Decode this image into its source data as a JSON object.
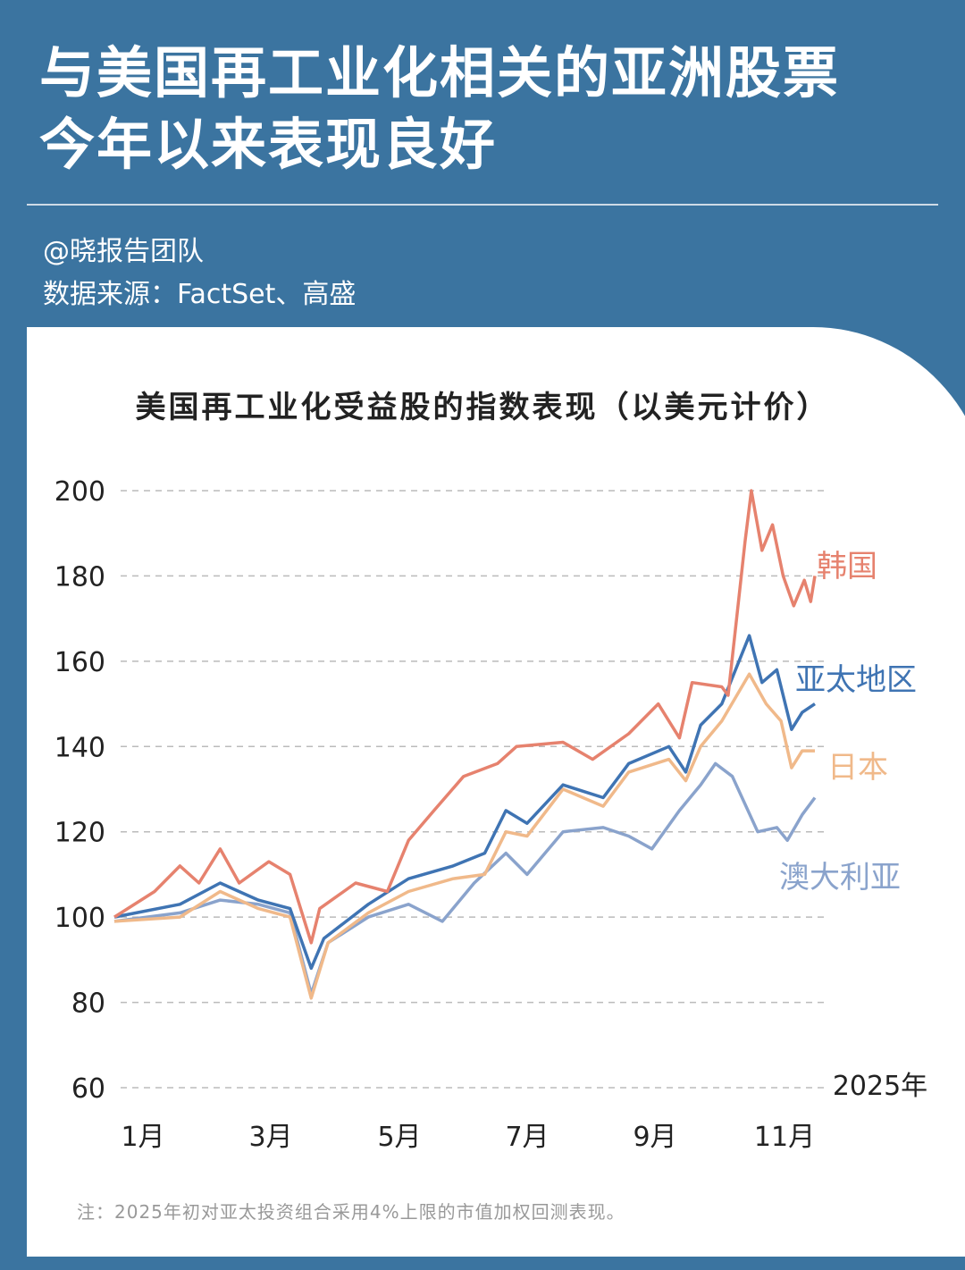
{
  "header": {
    "title_line1": "与美国再工业化相关的亚洲股票",
    "title_line2": "今年以来表现良好",
    "author": "@晓报告团队",
    "source": "数据来源：FactSet、高盛"
  },
  "note": "注：2025年初对亚太投资组合采用4%上限的市值加权回测表现。",
  "colors": {
    "background": "#3b74a0",
    "korea": "#e6826e",
    "asia_pacific": "#3f74b3",
    "japan": "#f0b98a",
    "australia": "#8aa3cc"
  },
  "chart_data": {
    "type": "line",
    "title": "美国再工业化受益股的指数表现（以美元计价）",
    "xlabel": "2025年",
    "ylim": [
      60,
      200
    ],
    "yticks": [
      "200",
      "180",
      "160",
      "140",
      "120",
      "100",
      "80",
      "60"
    ],
    "xticks": [
      "1月",
      "3月",
      "5月",
      "7月",
      "9月",
      "11月"
    ],
    "grid": "horizontal dashed",
    "series": [
      {
        "name": "韩国",
        "color": "#e6826e",
        "points": [
          [
            "2025-01-01",
            100
          ],
          [
            "2025-01-20",
            106
          ],
          [
            "2025-02-01",
            112
          ],
          [
            "2025-02-10",
            108
          ],
          [
            "2025-02-20",
            116
          ],
          [
            "2025-03-01",
            108
          ],
          [
            "2025-03-15",
            113
          ],
          [
            "2025-03-25",
            110
          ],
          [
            "2025-04-04",
            94
          ],
          [
            "2025-04-08",
            102
          ],
          [
            "2025-04-25",
            108
          ],
          [
            "2025-05-10",
            106
          ],
          [
            "2025-05-20",
            118
          ],
          [
            "2025-06-01",
            125
          ],
          [
            "2025-06-15",
            133
          ],
          [
            "2025-07-01",
            136
          ],
          [
            "2025-07-10",
            140
          ],
          [
            "2025-08-01",
            141
          ],
          [
            "2025-08-15",
            137
          ],
          [
            "2025-09-01",
            143
          ],
          [
            "2025-09-15",
            150
          ],
          [
            "2025-09-25",
            142
          ],
          [
            "2025-10-01",
            155
          ],
          [
            "2025-10-15",
            154
          ],
          [
            "2025-10-18",
            152
          ],
          [
            "2025-10-22",
            170
          ],
          [
            "2025-10-26",
            188
          ],
          [
            "2025-10-29",
            200
          ],
          [
            "2025-11-03",
            186
          ],
          [
            "2025-11-08",
            192
          ],
          [
            "2025-11-13",
            180
          ],
          [
            "2025-11-18",
            173
          ],
          [
            "2025-11-23",
            179
          ],
          [
            "2025-11-26",
            174
          ],
          [
            "2025-11-28",
            180
          ]
        ]
      },
      {
        "name": "亚太地区",
        "color": "#3f74b3",
        "points": [
          [
            "2025-01-01",
            100
          ],
          [
            "2025-02-01",
            103
          ],
          [
            "2025-02-20",
            108
          ],
          [
            "2025-03-10",
            104
          ],
          [
            "2025-03-25",
            102
          ],
          [
            "2025-04-04",
            88
          ],
          [
            "2025-04-10",
            95
          ],
          [
            "2025-05-01",
            103
          ],
          [
            "2025-05-20",
            109
          ],
          [
            "2025-06-10",
            112
          ],
          [
            "2025-06-25",
            115
          ],
          [
            "2025-07-05",
            125
          ],
          [
            "2025-07-15",
            122
          ],
          [
            "2025-08-01",
            131
          ],
          [
            "2025-08-20",
            128
          ],
          [
            "2025-09-01",
            136
          ],
          [
            "2025-09-20",
            140
          ],
          [
            "2025-09-28",
            134
          ],
          [
            "2025-10-05",
            145
          ],
          [
            "2025-10-15",
            150
          ],
          [
            "2025-10-28",
            166
          ],
          [
            "2025-11-03",
            155
          ],
          [
            "2025-11-10",
            158
          ],
          [
            "2025-11-17",
            144
          ],
          [
            "2025-11-22",
            148
          ],
          [
            "2025-11-28",
            150
          ]
        ]
      },
      {
        "name": "日本",
        "color": "#f0b98a",
        "points": [
          [
            "2025-01-01",
            99
          ],
          [
            "2025-02-01",
            100
          ],
          [
            "2025-02-20",
            106
          ],
          [
            "2025-03-10",
            102
          ],
          [
            "2025-03-25",
            100
          ],
          [
            "2025-04-04",
            81
          ],
          [
            "2025-04-12",
            94
          ],
          [
            "2025-05-01",
            101
          ],
          [
            "2025-05-20",
            106
          ],
          [
            "2025-06-10",
            109
          ],
          [
            "2025-06-25",
            110
          ],
          [
            "2025-07-05",
            120
          ],
          [
            "2025-07-15",
            119
          ],
          [
            "2025-08-01",
            130
          ],
          [
            "2025-08-20",
            126
          ],
          [
            "2025-09-01",
            134
          ],
          [
            "2025-09-20",
            137
          ],
          [
            "2025-09-28",
            132
          ],
          [
            "2025-10-05",
            140
          ],
          [
            "2025-10-15",
            146
          ],
          [
            "2025-10-28",
            157
          ],
          [
            "2025-11-05",
            150
          ],
          [
            "2025-11-12",
            146
          ],
          [
            "2025-11-17",
            135
          ],
          [
            "2025-11-22",
            139
          ],
          [
            "2025-11-28",
            139
          ]
        ]
      },
      {
        "name": "澳大利亚",
        "color": "#8aa3cc",
        "points": [
          [
            "2025-01-01",
            99
          ],
          [
            "2025-02-01",
            101
          ],
          [
            "2025-02-20",
            104
          ],
          [
            "2025-03-10",
            103
          ],
          [
            "2025-03-25",
            101
          ],
          [
            "2025-04-04",
            82
          ],
          [
            "2025-04-12",
            94
          ],
          [
            "2025-05-01",
            100
          ],
          [
            "2025-05-20",
            103
          ],
          [
            "2025-06-05",
            99
          ],
          [
            "2025-06-20",
            108
          ],
          [
            "2025-07-05",
            115
          ],
          [
            "2025-07-15",
            110
          ],
          [
            "2025-08-01",
            120
          ],
          [
            "2025-08-20",
            121
          ],
          [
            "2025-09-01",
            119
          ],
          [
            "2025-09-12",
            116
          ],
          [
            "2025-09-25",
            125
          ],
          [
            "2025-10-05",
            131
          ],
          [
            "2025-10-12",
            136
          ],
          [
            "2025-10-20",
            133
          ],
          [
            "2025-11-01",
            120
          ],
          [
            "2025-11-10",
            121
          ],
          [
            "2025-11-15",
            118
          ],
          [
            "2025-11-22",
            124
          ],
          [
            "2025-11-28",
            128
          ]
        ]
      }
    ]
  }
}
